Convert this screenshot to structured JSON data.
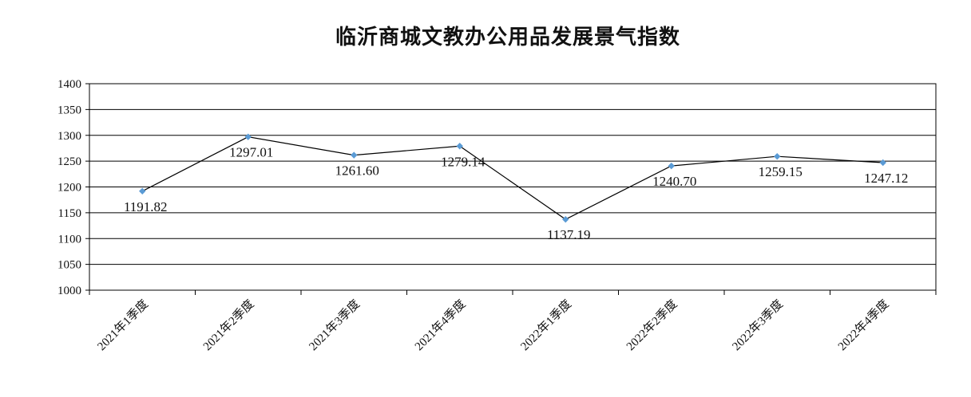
{
  "chart_data": {
    "type": "line",
    "title": "临沂商城文教办公用品发展景气指数",
    "xlabel": "",
    "ylabel": "",
    "categories": [
      "2021年1季度",
      "2021年2季度",
      "2021年3季度",
      "2021年4季度",
      "2022年1季度",
      "2022年2季度",
      "2022年3季度",
      "2022年4季度"
    ],
    "series": [
      {
        "name": "",
        "values": [
          1191.82,
          1297.01,
          1261.6,
          1279.14,
          1137.19,
          1240.7,
          1259.15,
          1247.12
        ]
      }
    ],
    "data_labels": [
      "1191.82",
      "1297.01",
      "1261.60",
      "1279.14",
      "1137.19",
      "1240.70",
      "1259.15",
      "1247.12"
    ],
    "ylim": [
      1000,
      1400
    ],
    "yticks": [
      1000,
      1050,
      1100,
      1150,
      1200,
      1250,
      1300,
      1350,
      1400
    ],
    "grid": true,
    "legend": "none",
    "colors": {
      "line": "#000000",
      "marker": "#5b9bd5",
      "grid": "#000000",
      "text": "#111111"
    }
  }
}
